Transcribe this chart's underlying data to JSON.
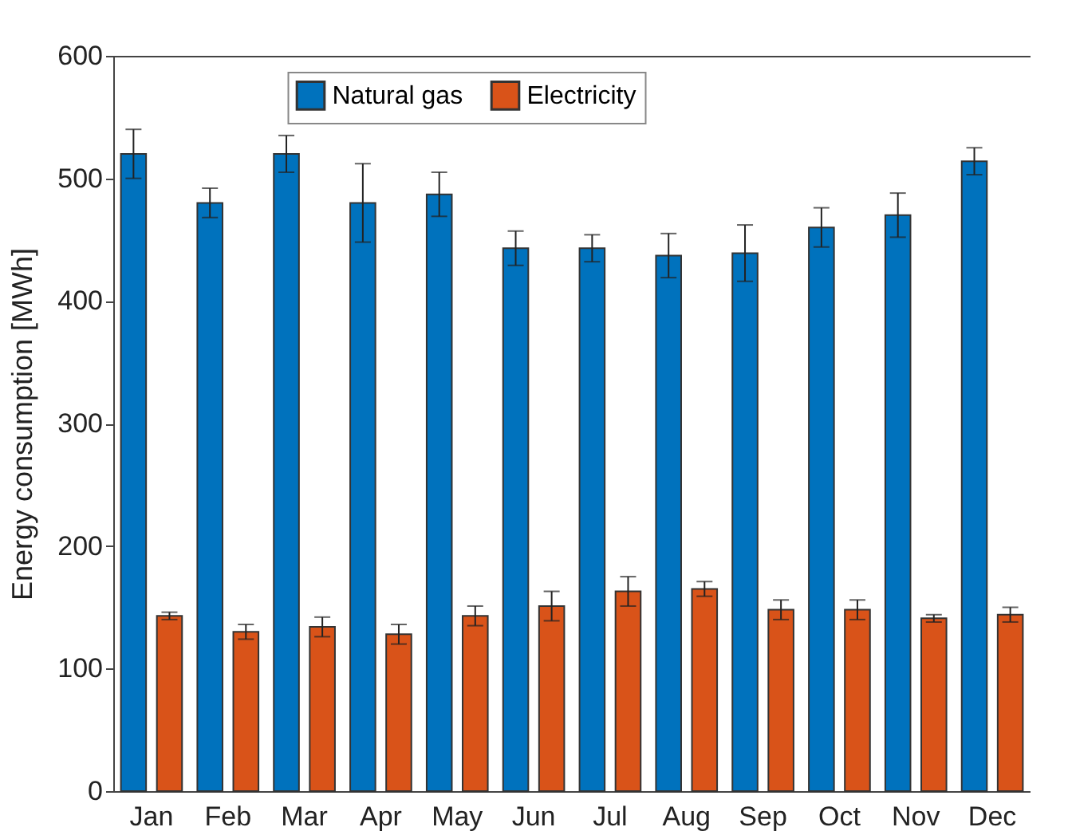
{
  "chart_data": {
    "type": "bar",
    "ylabel": "Energy consumption [MWh]",
    "categories": [
      "Jan",
      "Feb",
      "Mar",
      "Apr",
      "May",
      "Jun",
      "Jul",
      "Aug",
      "Sep",
      "Oct",
      "Nov",
      "Dec"
    ],
    "series": [
      {
        "name": "Natural gas",
        "color": "#0072bd",
        "values": [
          520,
          480,
          520,
          480,
          487,
          443,
          443,
          437,
          439,
          460,
          470,
          514
        ],
        "errors": [
          20,
          12,
          15,
          32,
          18,
          14,
          11,
          18,
          23,
          16,
          18,
          11
        ]
      },
      {
        "name": "Electricity",
        "color": "#d95319",
        "values": [
          143,
          130,
          134,
          128,
          143,
          151,
          163,
          165,
          148,
          148,
          141,
          144
        ],
        "errors": [
          3,
          6,
          8,
          8,
          8,
          12,
          12,
          6,
          8,
          8,
          3,
          6
        ]
      }
    ],
    "ylim": [
      0,
      600
    ],
    "yticks": [
      0,
      100,
      200,
      300,
      400,
      500,
      600
    ],
    "grid": false,
    "legend": "top"
  }
}
